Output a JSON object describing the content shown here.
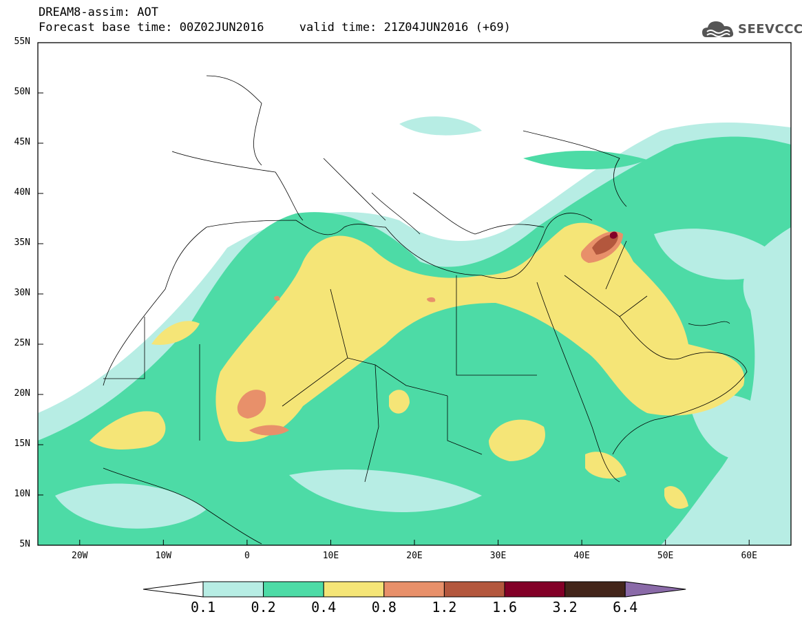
{
  "header": {
    "title": "DREAM8-assim: AOT",
    "base_time_label": "Forecast base time:",
    "base_time": "00Z02JUN2016",
    "valid_time_label": "valid time:",
    "valid_time": "21Z04JUN2016 (+69)"
  },
  "logo": {
    "text": "SEEVCCC",
    "icon": "cloud-icon"
  },
  "map": {
    "variable": "AOT",
    "lon_range": [
      -25,
      65
    ],
    "lat_range": [
      5,
      55
    ],
    "lat_labels": [
      "55N",
      "50N",
      "45N",
      "40N",
      "35N",
      "30N",
      "25N",
      "20N",
      "15N",
      "10N",
      "5N"
    ],
    "lon_labels": [
      "20W",
      "10W",
      "0",
      "10E",
      "20E",
      "30E",
      "40E",
      "50E",
      "60E"
    ]
  },
  "colorbar": {
    "levels": [
      "0.1",
      "0.2",
      "0.4",
      "0.8",
      "1.2",
      "1.6",
      "3.2",
      "6.4"
    ],
    "colors": [
      "#ffffff",
      "#b7ede4",
      "#4ddba6",
      "#f5e577",
      "#e8906a",
      "#b3573d",
      "#820027",
      "#43251a",
      "#8a6aa8"
    ]
  }
}
